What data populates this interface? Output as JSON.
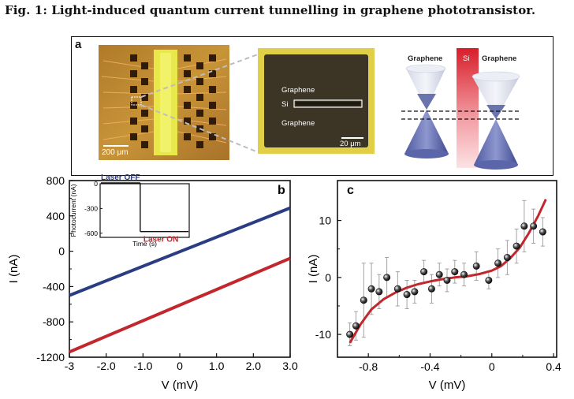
{
  "figure": {
    "title": "Fig. 1: Light-induced quantum current tunnelling in graphene phototransistor."
  },
  "panel_a": {
    "label": "a",
    "micrograph_scale": "200 μm",
    "zoom_labels": {
      "top": "Graphene",
      "middle": "Si",
      "bottom": "Graphene",
      "scale": "20 μm"
    },
    "diagram_labels": {
      "left": "Graphene",
      "center": "Si",
      "right": "Graphene"
    }
  },
  "chart_data": [
    {
      "panel": "b",
      "type": "line",
      "xlabel": "V (mV)",
      "ylabel": "I (nA)",
      "xlim": [
        -3,
        3
      ],
      "ylim": [
        -1200,
        800
      ],
      "x_ticks": [
        "-3",
        "-2.0",
        "-1.0",
        "0",
        "1.0",
        "2.0",
        "3.0"
      ],
      "y_ticks": [
        "800",
        "400",
        "0",
        "-400",
        "-800",
        "-1200"
      ],
      "series": [
        {
          "color": "#2b3d82",
          "x": [
            -3,
            3
          ],
          "y": [
            -500,
            490
          ]
        },
        {
          "color": "#c1272d",
          "x": [
            -3,
            3
          ],
          "y": [
            -1140,
            -80
          ]
        }
      ],
      "inset": {
        "ylabel": "Photocurrent (nA)",
        "xlabel": "Time (s)",
        "y_ticks": [
          "-600",
          "-300",
          "0"
        ],
        "ylim": [
          -650,
          0
        ],
        "annotations": {
          "off": "Laser OFF",
          "on": "Laser ON"
        },
        "levels": {
          "off": 0,
          "on": -580
        },
        "step_fraction": 0.45,
        "off_color": "#2b3d82",
        "on_color": "#c1272d"
      }
    },
    {
      "panel": "c",
      "type": "scatter",
      "xlabel": "V (mV)",
      "ylabel": "I (nA)",
      "xlim": [
        -1.0,
        0.42
      ],
      "ylim": [
        -14,
        17
      ],
      "x_ticks": [
        "-0.8",
        "-0.4",
        "0",
        "0.4"
      ],
      "y_ticks": [
        "10",
        "0",
        "-10"
      ],
      "points": [
        {
          "x": -0.92,
          "y": -10.0,
          "err": 2.0
        },
        {
          "x": -0.88,
          "y": -8.5,
          "err": 2.5
        },
        {
          "x": -0.83,
          "y": -4.0,
          "err": 6.5
        },
        {
          "x": -0.78,
          "y": -2.0,
          "err": 4.5
        },
        {
          "x": -0.73,
          "y": -2.5,
          "err": 3.0
        },
        {
          "x": -0.68,
          "y": 0.0,
          "err": 3.5
        },
        {
          "x": -0.61,
          "y": -2.0,
          "err": 3.0
        },
        {
          "x": -0.55,
          "y": -3.0,
          "err": 2.5
        },
        {
          "x": -0.5,
          "y": -2.5,
          "err": 2.0
        },
        {
          "x": -0.44,
          "y": 1.0,
          "err": 2.0
        },
        {
          "x": -0.39,
          "y": -2.0,
          "err": 2.5
        },
        {
          "x": -0.34,
          "y": 0.5,
          "err": 2.0
        },
        {
          "x": -0.29,
          "y": -0.5,
          "err": 2.0
        },
        {
          "x": -0.24,
          "y": 1.0,
          "err": 2.0
        },
        {
          "x": -0.18,
          "y": 0.5,
          "err": 2.0
        },
        {
          "x": -0.1,
          "y": 2.0,
          "err": 2.5
        },
        {
          "x": -0.02,
          "y": -0.5,
          "err": 1.5
        },
        {
          "x": 0.04,
          "y": 2.5,
          "err": 2.5
        },
        {
          "x": 0.1,
          "y": 3.5,
          "err": 3.0
        },
        {
          "x": 0.16,
          "y": 5.5,
          "err": 3.0
        },
        {
          "x": 0.21,
          "y": 9.0,
          "err": 4.5
        },
        {
          "x": 0.27,
          "y": 9.0,
          "err": 3.0
        },
        {
          "x": 0.33,
          "y": 8.0,
          "err": 2.5
        }
      ],
      "fit": {
        "color": "#c1272d",
        "x": [
          -0.92,
          -0.85,
          -0.78,
          -0.7,
          -0.62,
          -0.55,
          -0.48,
          -0.4,
          -0.32,
          -0.24,
          -0.16,
          -0.08,
          0.0,
          0.06,
          0.12,
          0.18,
          0.24,
          0.3,
          0.35
        ],
        "y": [
          -11.5,
          -8.2,
          -5.6,
          -3.8,
          -2.6,
          -1.8,
          -1.2,
          -0.7,
          -0.3,
          0.0,
          0.2,
          0.6,
          1.2,
          2.0,
          3.4,
          5.2,
          7.8,
          10.8,
          13.7
        ]
      }
    }
  ]
}
